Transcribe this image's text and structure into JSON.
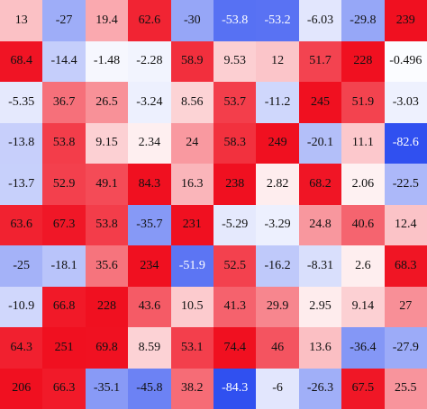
{
  "chart_data": {
    "type": "heatmap",
    "title": "",
    "xlabel": "",
    "ylabel": "",
    "colormap": "bwr",
    "color_min": -84.3,
    "color_max": 251,
    "colors": {
      "low": "#3050f0",
      "mid": "#ffffff",
      "high": "#f01020"
    },
    "rows": [
      [
        "13",
        "-27",
        "19.4",
        "62.6",
        "-30",
        "-53.8",
        "-53.2",
        "-6.03",
        "-29.8",
        "239"
      ],
      [
        "68.4",
        "-14.4",
        "-1.48",
        "-2.28",
        "58.9",
        "9.53",
        "12",
        "51.7",
        "228",
        "-0.496"
      ],
      [
        "-5.35",
        "36.7",
        "26.5",
        "-3.24",
        "8.56",
        "53.7",
        "-11.2",
        "245",
        "51.9",
        "-3.03"
      ],
      [
        "-13.8",
        "53.8",
        "9.15",
        "2.34",
        "24",
        "58.3",
        "249",
        "-20.1",
        "11.1",
        "-82.6"
      ],
      [
        "-13.7",
        "52.9",
        "49.1",
        "84.3",
        "16.3",
        "238",
        "2.82",
        "68.2",
        "2.06",
        "-22.5"
      ],
      [
        "63.6",
        "67.3",
        "53.8",
        "-35.7",
        "231",
        "-5.29",
        "-3.29",
        "24.8",
        "40.6",
        "12.4"
      ],
      [
        "-25",
        "-18.1",
        "35.6",
        "234",
        "-51.9",
        "52.5",
        "-16.2",
        "-8.31",
        "2.6",
        "68.3"
      ],
      [
        "-10.9",
        "66.8",
        "228",
        "43.6",
        "10.5",
        "41.3",
        "29.9",
        "2.95",
        "9.14",
        "27"
      ],
      [
        "64.3",
        "251",
        "69.8",
        "8.59",
        "53.1",
        "74.4",
        "46",
        "13.6",
        "-36.4",
        "-27.9"
      ],
      [
        "206",
        "66.3",
        "-35.1",
        "-45.8",
        "38.2",
        "-84.3",
        "-6",
        "-26.3",
        "67.5",
        "25.5"
      ]
    ]
  }
}
